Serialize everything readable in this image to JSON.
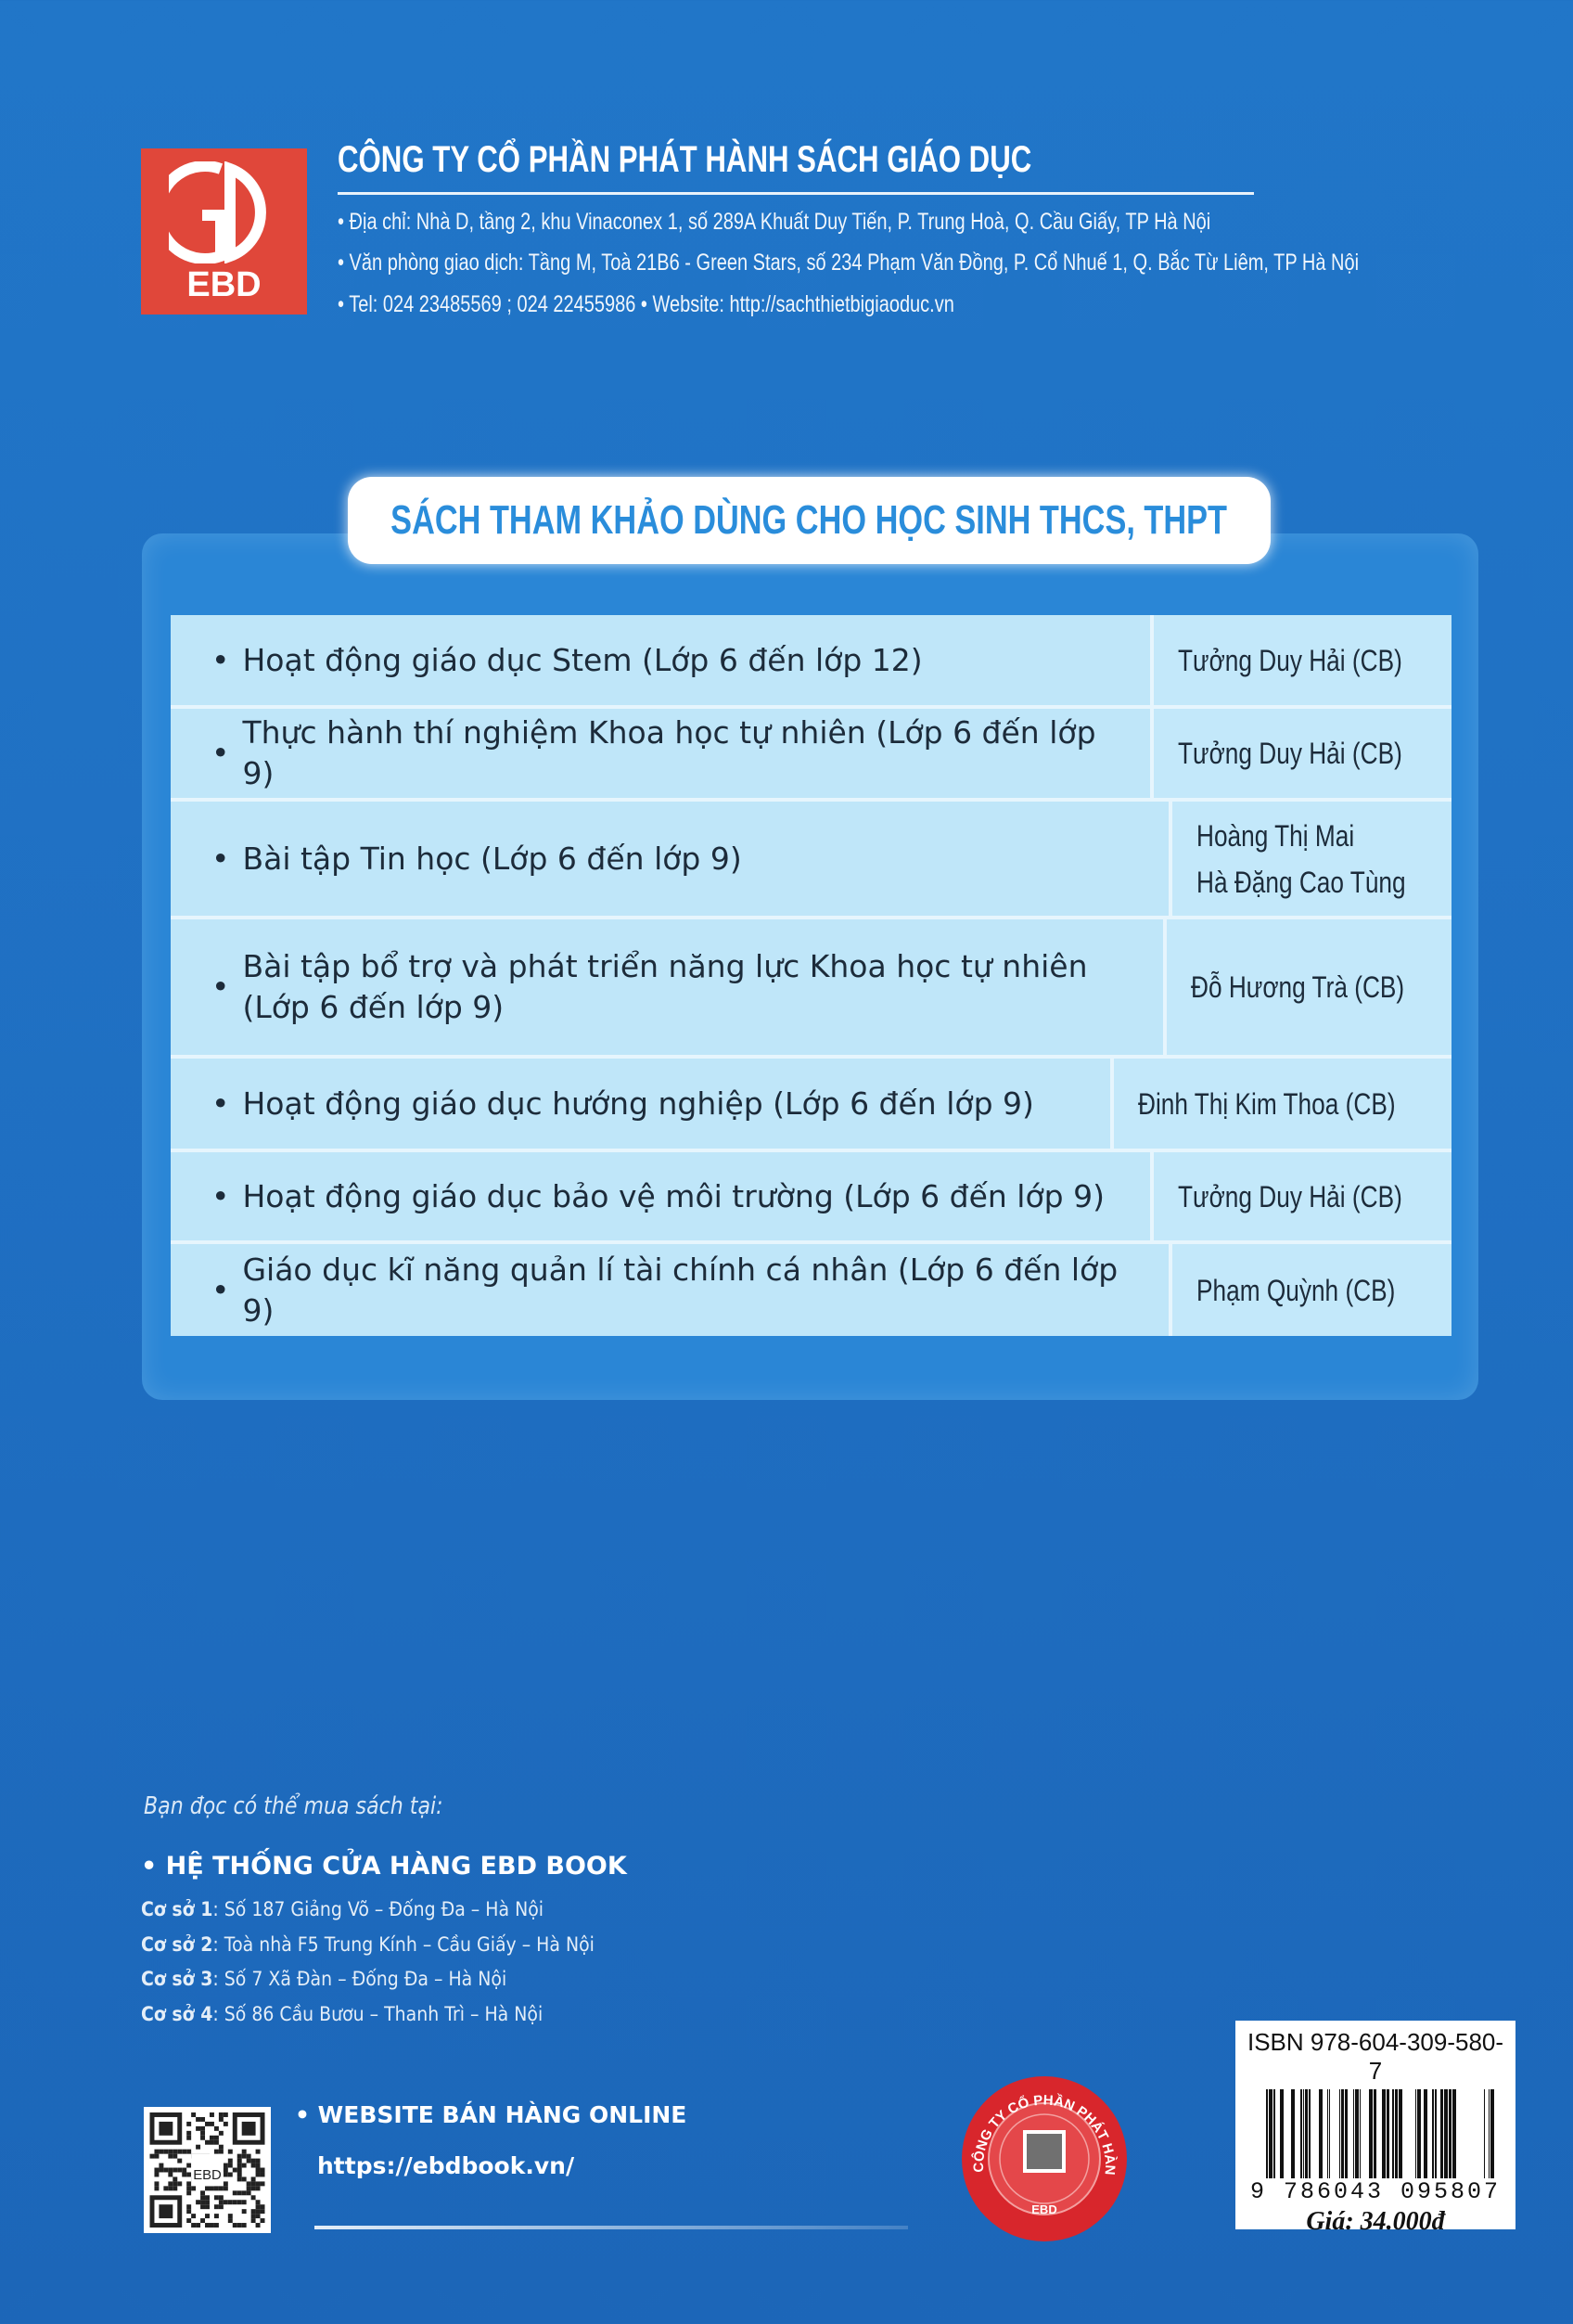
{
  "publisher": {
    "logo_text": "EBD",
    "logo_mark": "GD",
    "name": "CÔNG TY CỔ PHẦN PHÁT HÀNH SÁCH GIÁO DỤC",
    "address": "• Địa chỉ: Nhà D, tầng 2, khu Vinaconex 1, số 289A Khuất Duy Tiến, P. Trung Hoà, Q. Cầu Giấy, TP Hà Nội",
    "office": "• Văn phòng giao dịch: Tầng M, Toà 21B6 - Green Stars, số 234 Phạm Văn Đồng, P. Cổ Nhuế 1, Q. Bắc Từ Liêm, TP Hà Nội",
    "contact": "• Tel: 024 23485569 ; 024 22455986  • Website: http://sachthietbigiaoduc.vn",
    "brand_color": "#e0473a"
  },
  "series_title": "SÁCH THAM KHẢO DÙNG CHO HỌC SINH THCS, THPT",
  "books": [
    {
      "title": "Hoạt động giáo dục Stem (Lớp 6 đến lớp 12)",
      "authors": [
        "Tưởng Duy Hải (CB)"
      ]
    },
    {
      "title": "Thực hành thí nghiệm Khoa học tự nhiên (Lớp 6 đến lớp 9)",
      "authors": [
        "Tưởng Duy Hải (CB)"
      ]
    },
    {
      "title": "Bài tập Tin học (Lớp 6 đến lớp 9)",
      "authors": [
        "Hoàng Thị Mai",
        "Hà Đặng Cao Tùng"
      ]
    },
    {
      "title": "Bài tập bổ trợ và phát triển năng lực Khoa học tự nhiên (Lớp 6 đến lớp 9)",
      "authors": [
        "Đỗ Hương Trà (CB)"
      ]
    },
    {
      "title": "Hoạt động giáo dục hướng nghiệp (Lớp 6 đến lớp 9)",
      "authors": [
        "Đinh Thị Kim Thoa (CB)"
      ]
    },
    {
      "title": "Hoạt động giáo dục bảo vệ môi trường (Lớp 6 đến lớp 9)",
      "authors": [
        "Tưởng Duy Hải (CB)"
      ]
    },
    {
      "title": "Giáo dục kĩ năng quản lí tài chính cá nhân (Lớp 6 đến lớp 9)",
      "authors": [
        "Phạm Quỳnh (CB)"
      ]
    }
  ],
  "purchase": {
    "intro": "Bạn đọc có thể mua sách tại:",
    "stores_heading": "• HỆ THỐNG CỬA HÀNG EBD BOOK",
    "stores": [
      {
        "label": "Cơ sở 1",
        "address": ": Số 187 Giảng Võ – Đống Đa – Hà Nội"
      },
      {
        "label": "Cơ sở 2",
        "address": ": Toà nhà F5 Trung Kính – Cầu Giấy – Hà Nội"
      },
      {
        "label": "Cơ sở 3",
        "address": ": Số 7 Xã Đàn – Đống Đa – Hà Nội"
      },
      {
        "label": "Cơ sở 4",
        "address": ": Số 86 Cầu Bươu – Thanh Trì – Hà Nội"
      }
    ],
    "online_heading": "• WEBSITE BÁN HÀNG ONLINE",
    "online_url": "https://ebdbook.vn/",
    "qr_logo": "EBD"
  },
  "seal": {
    "text": "CÔNG TY CỔ PHẦN PHÁT HÀNH SÁCH GIÁO DỤC",
    "logo": "EBD",
    "color": "#d8262c"
  },
  "isbn": {
    "label": "ISBN 978-604-309-580-7",
    "barcode_number": "9 786043 095807",
    "price": "Giá: 34.000đ"
  }
}
